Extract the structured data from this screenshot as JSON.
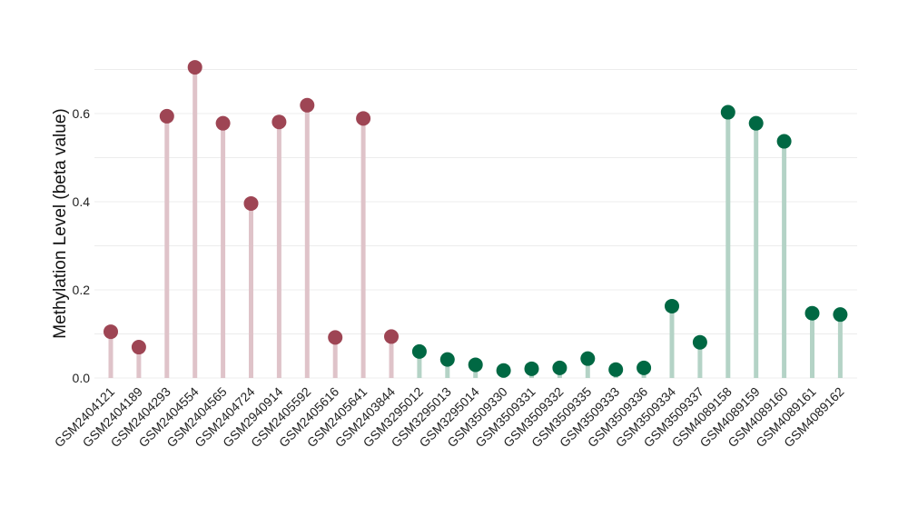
{
  "chart_data": {
    "type": "lollipop",
    "title": "",
    "xlabel": "",
    "ylabel": "Methylation Level (beta value)",
    "ylim": [
      0,
      0.7
    ],
    "y_ticks": [
      0.0,
      0.2,
      0.4,
      0.6
    ],
    "y_tick_labels": [
      "0.0",
      "0.2",
      "0.4",
      "0.6"
    ],
    "grid": true,
    "legend": "none",
    "categories": [
      "GSM2404121",
      "GSM2404189",
      "GSM2404293",
      "GSM2404554",
      "GSM2404565",
      "GSM2404724",
      "GSM2940914",
      "GSM2405592",
      "GSM2405616",
      "GSM2405641",
      "GSM2403844",
      "GSM3295012",
      "GSM3295013",
      "GSM3295014",
      "GSM3509330",
      "GSM3509331",
      "GSM3509332",
      "GSM3509335",
      "GSM3509333",
      "GSM3509336",
      "GSM3509334",
      "GSM3509337",
      "GSM4089158",
      "GSM4089159",
      "GSM4089160",
      "GSM4089161",
      "GSM4089162"
    ],
    "values": [
      0.105,
      0.07,
      0.594,
      0.705,
      0.578,
      0.396,
      0.581,
      0.619,
      0.092,
      0.589,
      0.094,
      0.06,
      0.042,
      0.03,
      0.017,
      0.021,
      0.023,
      0.044,
      0.019,
      0.023,
      0.163,
      0.081,
      0.603,
      0.578,
      0.537,
      0.147,
      0.144
    ],
    "groups": [
      "a",
      "a",
      "a",
      "a",
      "a",
      "a",
      "a",
      "a",
      "a",
      "a",
      "a",
      "b",
      "b",
      "b",
      "b",
      "b",
      "b",
      "b",
      "b",
      "b",
      "b",
      "b",
      "b",
      "b",
      "b",
      "b",
      "b"
    ],
    "group_colors": {
      "a": {
        "dot": "#9e4554",
        "stem": "#dfc3c9"
      },
      "b": {
        "dot": "#006843",
        "stem": "#b4d3c6"
      }
    },
    "gridline_color": "#ececec"
  }
}
